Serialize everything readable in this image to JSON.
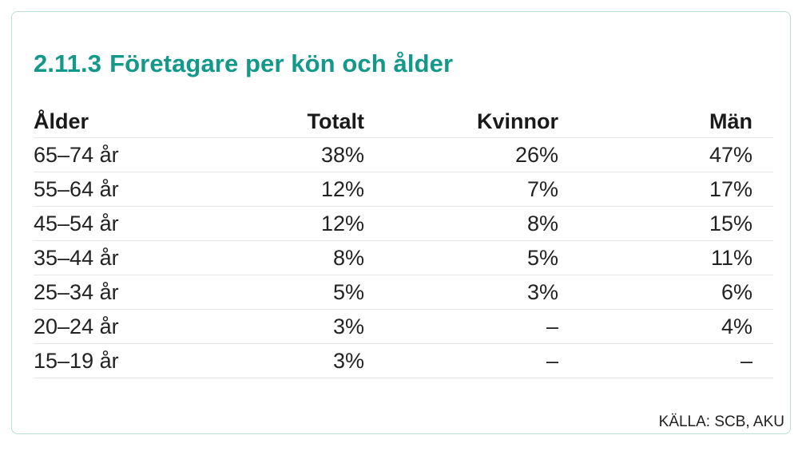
{
  "title": {
    "number": "2.11.3",
    "text": "Företagare per kön och ålder"
  },
  "table": {
    "headers": {
      "age": "Ålder",
      "total": "Totalt",
      "women": "Kvinnor",
      "men": "Män"
    },
    "rows": [
      {
        "age": "65–74 år",
        "total": "38%",
        "women": "26%",
        "men": "47%"
      },
      {
        "age": "55–64 år",
        "total": "12%",
        "women": "7%",
        "men": "17%"
      },
      {
        "age": "45–54 år",
        "total": "12%",
        "women": "8%",
        "men": "15%"
      },
      {
        "age": "35–44 år",
        "total": "8%",
        "women": "5%",
        "men": "11%"
      },
      {
        "age": "25–34 år",
        "total": "5%",
        "women": "3%",
        "men": "6%"
      },
      {
        "age": "20–24 år",
        "total": "3%",
        "women": "–",
        "men": "4%"
      },
      {
        "age": "15–19 år",
        "total": "3%",
        "women": "–",
        "men": "–"
      }
    ]
  },
  "source": "KÄLLA: SCB, AKU",
  "colors": {
    "title": "#12998a",
    "border": "#b9e0d3"
  }
}
